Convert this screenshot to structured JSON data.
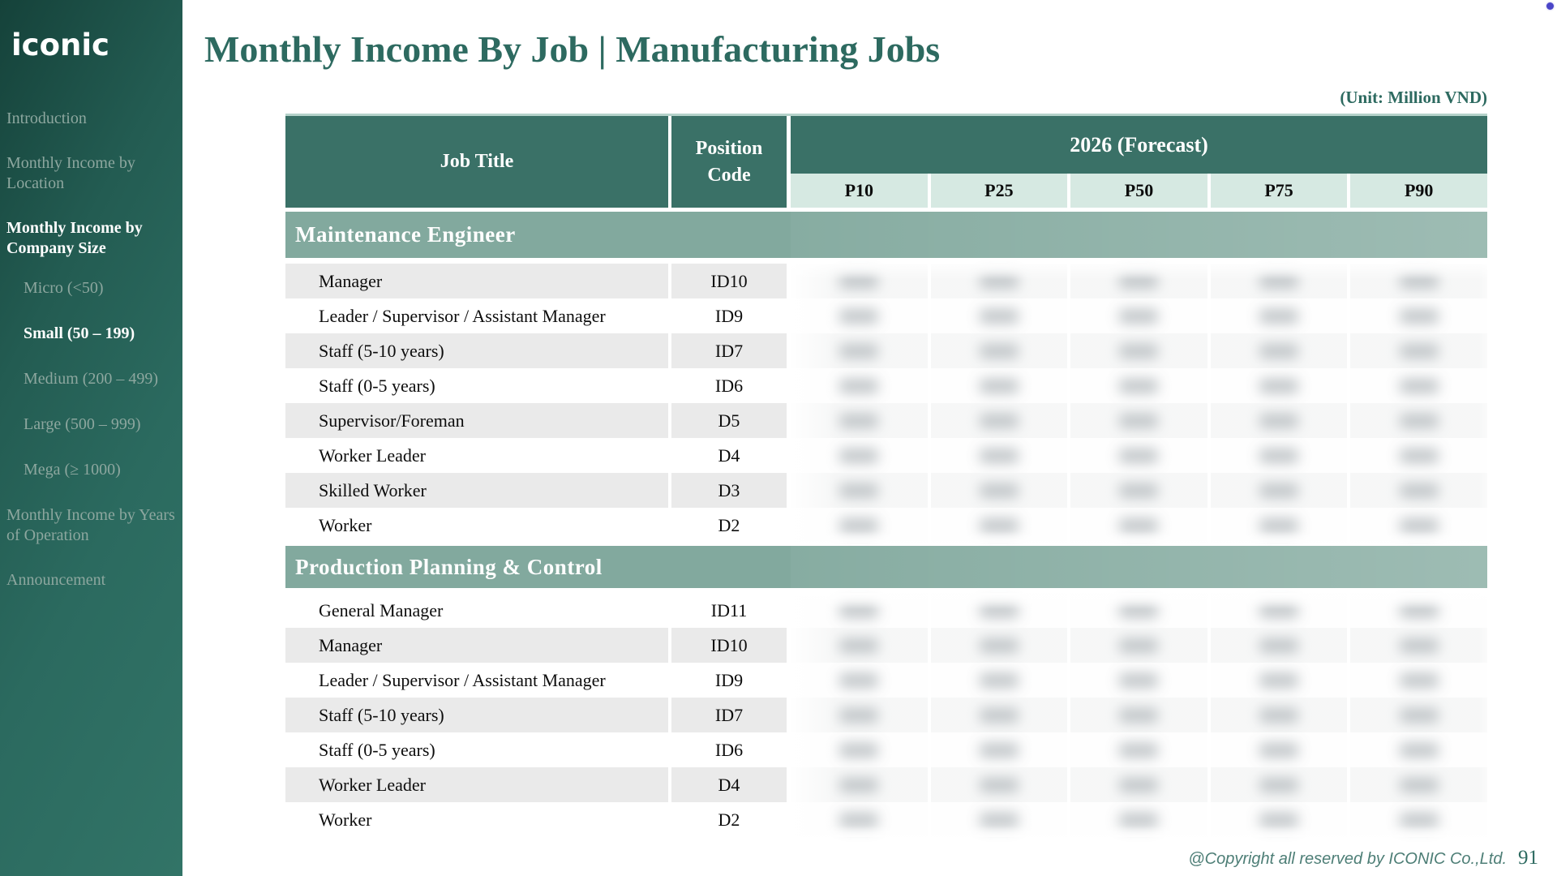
{
  "colors": {
    "brand_teal_dark_header": "#3a7167",
    "section_band": "#82a99e",
    "percentile_header_mint": "#d6e9e2",
    "row_stripe_gray": "#eaeaea",
    "title_teal": "#2d6a60",
    "sidebar_gradient_start": "#15423a",
    "sidebar_gradient_end": "#327467",
    "sidebar_inactive_text": "#8da79f",
    "corner_dot_accent": "#4a45c8"
  },
  "sidebar": {
    "logo": "iconic",
    "items": [
      {
        "label": "Introduction"
      },
      {
        "label": "Monthly Income by Location"
      },
      {
        "label": "Monthly Income by Company Size"
      },
      {
        "label": "Micro (<50)"
      },
      {
        "label": "Small (50 – 199)"
      },
      {
        "label": "Medium (200 – 499)"
      },
      {
        "label": "Large (500 – 999)"
      },
      {
        "label": "Mega (≥ 1000)"
      },
      {
        "label": "Monthly Income by Years of Operation"
      },
      {
        "label": "Announcement"
      }
    ],
    "active_section": "Monthly Income by Company Size",
    "active_subsection": "Small (50 – 199)"
  },
  "header": {
    "title": "Monthly Income By Job | Manufacturing Jobs",
    "unit_note": "(Unit: Million VND)"
  },
  "table": {
    "columns": {
      "job_title": "Job Title",
      "position_code": "Position Code",
      "year_group": "2026 (Forecast)",
      "percentiles": [
        "P10",
        "P25",
        "P50",
        "P75",
        "P90"
      ]
    },
    "values_redacted": true,
    "sections": [
      {
        "title": "Maintenance Engineer",
        "rows": [
          {
            "job": "Manager",
            "code": "ID10"
          },
          {
            "job": "Leader / Supervisor / Assistant Manager",
            "code": "ID9"
          },
          {
            "job": "Staff (5-10 years)",
            "code": "ID7"
          },
          {
            "job": "Staff (0-5 years)",
            "code": "ID6"
          },
          {
            "job": "Supervisor/Foreman",
            "code": "D5"
          },
          {
            "job": "Worker Leader",
            "code": "D4"
          },
          {
            "job": "Skilled Worker",
            "code": "D3"
          },
          {
            "job": "Worker",
            "code": "D2"
          }
        ]
      },
      {
        "title": "Production Planning & Control",
        "rows": [
          {
            "job": "General Manager",
            "code": "ID11"
          },
          {
            "job": "Manager",
            "code": "ID10"
          },
          {
            "job": "Leader / Supervisor / Assistant Manager",
            "code": "ID9"
          },
          {
            "job": "Staff (5-10 years)",
            "code": "ID7"
          },
          {
            "job": "Staff (0-5 years)",
            "code": "ID6"
          },
          {
            "job": "Worker Leader",
            "code": "D4"
          },
          {
            "job": "Worker",
            "code": "D2"
          }
        ]
      }
    ]
  },
  "footer": {
    "copyright": "@Copyright all reserved by ICONIC Co.,Ltd.",
    "page_number": "91"
  }
}
